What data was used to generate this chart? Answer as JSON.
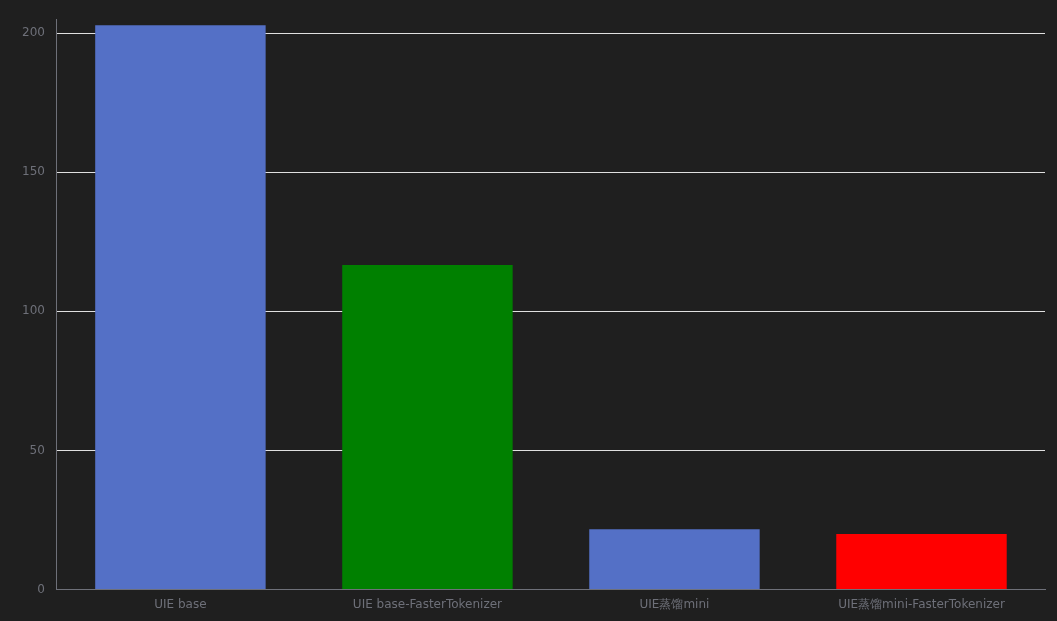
{
  "chart_data": {
    "type": "bar",
    "categories": [
      "UIE base",
      "UIE base-FasterTokenizer",
      "UIE蒸馏mini",
      "UIE蒸馏mini-FasterTokenizer"
    ],
    "values": [
      202.8,
      116.7,
      21.7,
      20
    ],
    "colors": [
      "#5470c6",
      "#008000",
      "#5470c6",
      "#ff0000"
    ],
    "ylim": [
      0,
      205
    ],
    "yticks": [
      0,
      50,
      100,
      150,
      200
    ],
    "grid": "y",
    "legend": false
  }
}
